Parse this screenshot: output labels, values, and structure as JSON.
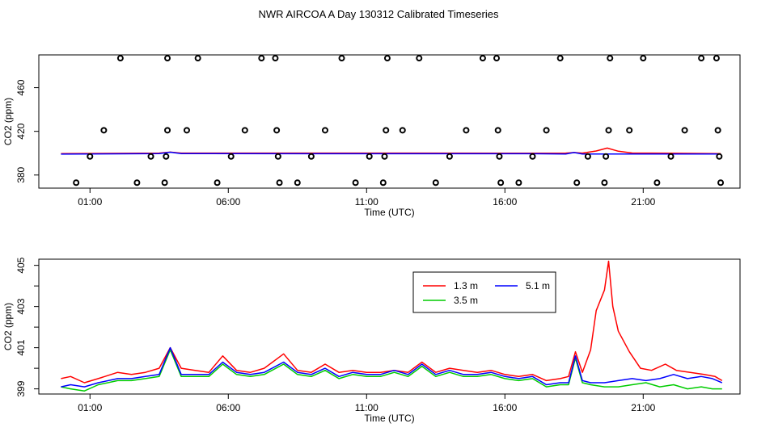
{
  "title": "NWR AIRCOA A  Day 130312  Calibrated Timeseries",
  "chart_data": [
    {
      "type": "scatter",
      "ylabel": "CO2 (ppm)",
      "xlabel": "Time (UTC)",
      "xlim": [
        -0.85,
        24.5
      ],
      "ylim": [
        368,
        490
      ],
      "x_tick_values": [
        1,
        6,
        11,
        16,
        21
      ],
      "x_tick_labels": [
        "01:00",
        "06:00",
        "11:00",
        "16:00",
        "21:00"
      ],
      "y_tick_values": [
        380,
        420,
        460
      ],
      "y_tick_labels": [
        "380",
        "420",
        "460"
      ],
      "points": [
        [
          0.5,
          373
        ],
        [
          1.0,
          397
        ],
        [
          1.5,
          421
        ],
        [
          2.1,
          487
        ],
        [
          2.7,
          373
        ],
        [
          3.2,
          397
        ],
        [
          3.7,
          373
        ],
        [
          3.75,
          397
        ],
        [
          3.8,
          421
        ],
        [
          3.8,
          487
        ],
        [
          4.5,
          421
        ],
        [
          4.9,
          487
        ],
        [
          5.6,
          373
        ],
        [
          6.1,
          397
        ],
        [
          6.6,
          421
        ],
        [
          7.2,
          487
        ],
        [
          7.7,
          487
        ],
        [
          7.75,
          421
        ],
        [
          7.8,
          397
        ],
        [
          7.85,
          373
        ],
        [
          8.5,
          373
        ],
        [
          9.0,
          397
        ],
        [
          9.5,
          421
        ],
        [
          10.1,
          487
        ],
        [
          10.6,
          373
        ],
        [
          11.1,
          397
        ],
        [
          11.6,
          373
        ],
        [
          11.65,
          397
        ],
        [
          11.7,
          421
        ],
        [
          11.75,
          487
        ],
        [
          12.3,
          421
        ],
        [
          12.9,
          487
        ],
        [
          13.5,
          373
        ],
        [
          14.0,
          397
        ],
        [
          14.6,
          421
        ],
        [
          15.2,
          487
        ],
        [
          15.7,
          487
        ],
        [
          15.75,
          421
        ],
        [
          15.8,
          397
        ],
        [
          15.85,
          373
        ],
        [
          16.5,
          373
        ],
        [
          17.0,
          397
        ],
        [
          17.5,
          421
        ],
        [
          18.0,
          487
        ],
        [
          18.6,
          373
        ],
        [
          19.0,
          397
        ],
        [
          19.6,
          373
        ],
        [
          19.65,
          397
        ],
        [
          19.75,
          421
        ],
        [
          19.8,
          487
        ],
        [
          20.5,
          421
        ],
        [
          21.0,
          487
        ],
        [
          21.5,
          373
        ],
        [
          22.0,
          397
        ],
        [
          22.5,
          421
        ],
        [
          23.1,
          487
        ],
        [
          23.65,
          487
        ],
        [
          23.7,
          421
        ],
        [
          23.75,
          397
        ],
        [
          23.8,
          373
        ]
      ],
      "lines": [
        {
          "name": "1.3 m",
          "color": "#ff0000",
          "x": [
            -0.05,
            3.5,
            3.9,
            4.3,
            17.0,
            18.2,
            18.5,
            18.8,
            19.3,
            19.7,
            20.1,
            20.6,
            22.0,
            23.8
          ],
          "y": [
            399.6,
            400.1,
            401.0,
            400.1,
            400.0,
            400.1,
            400.6,
            400.1,
            402.0,
            404.7,
            401.8,
            400.2,
            400.0,
            399.6
          ]
        },
        {
          "name": "5.1 m",
          "color": "#0000ff",
          "x": [
            -0.05,
            3.5,
            3.9,
            4.3,
            17.0,
            18.2,
            18.5,
            18.8,
            23.8
          ],
          "y": [
            399.1,
            399.6,
            400.9,
            399.6,
            399.5,
            399.3,
            400.6,
            399.3,
            399.3
          ]
        }
      ]
    },
    {
      "type": "line",
      "ylabel": "CO2 (ppm)",
      "xlabel": "Time (UTC)",
      "xlim": [
        -0.85,
        24.5
      ],
      "ylim": [
        398.75,
        405.3
      ],
      "x_tick_values": [
        1,
        6,
        11,
        16,
        21
      ],
      "x_tick_labels": [
        "01:00",
        "06:00",
        "11:00",
        "16:00",
        "21:00"
      ],
      "y_tick_values": [
        399,
        401,
        403,
        405
      ],
      "y_tick_labels": [
        "399",
        "401",
        "403",
        "405"
      ],
      "legend": {
        "position": "top-right",
        "entries": [
          "1.3 m",
          "3.5 m",
          "5.1 m"
        ]
      },
      "series": [
        {
          "name": "1.3 m",
          "color": "#ff0000",
          "x": [
            -0.05,
            0.3,
            0.8,
            1.3,
            2.0,
            2.5,
            3.0,
            3.5,
            3.9,
            4.3,
            4.8,
            5.3,
            5.8,
            6.3,
            6.8,
            7.3,
            8.0,
            8.5,
            9.0,
            9.5,
            10.0,
            10.5,
            11.0,
            11.5,
            12.0,
            12.5,
            13.0,
            13.5,
            14.0,
            14.5,
            15.0,
            15.5,
            16.0,
            16.5,
            17.0,
            17.5,
            18.0,
            18.3,
            18.55,
            18.8,
            19.1,
            19.3,
            19.6,
            19.75,
            19.9,
            20.1,
            20.5,
            20.9,
            21.3,
            21.8,
            22.2,
            22.7,
            23.2,
            23.6,
            23.85
          ],
          "y": [
            399.5,
            399.6,
            399.3,
            399.5,
            399.8,
            399.7,
            399.8,
            400.0,
            401.0,
            400.0,
            399.9,
            399.8,
            400.6,
            399.9,
            399.8,
            400.0,
            400.7,
            399.9,
            399.8,
            400.2,
            399.8,
            399.9,
            399.8,
            399.8,
            399.9,
            399.8,
            400.3,
            399.8,
            400.0,
            399.9,
            399.8,
            399.9,
            399.7,
            399.6,
            399.7,
            399.4,
            399.5,
            399.6,
            400.8,
            399.8,
            400.9,
            402.8,
            403.8,
            405.2,
            403.0,
            401.8,
            400.8,
            400.0,
            399.9,
            400.2,
            399.9,
            399.8,
            399.7,
            399.6,
            399.4
          ]
        },
        {
          "name": "3.5 m",
          "color": "#00cc00",
          "x": [
            -0.05,
            0.3,
            0.8,
            1.3,
            2.0,
            2.5,
            3.0,
            3.5,
            3.9,
            4.3,
            4.8,
            5.3,
            5.8,
            6.3,
            6.8,
            7.3,
            8.0,
            8.5,
            9.0,
            9.5,
            10.0,
            10.5,
            11.0,
            11.5,
            12.0,
            12.5,
            13.0,
            13.5,
            14.0,
            14.5,
            15.0,
            15.5,
            16.0,
            16.5,
            17.0,
            17.5,
            18.0,
            18.3,
            18.55,
            18.8,
            19.1,
            19.6,
            20.1,
            20.6,
            21.1,
            21.6,
            22.1,
            22.6,
            23.1,
            23.5,
            23.85
          ],
          "y": [
            399.1,
            399.0,
            398.9,
            399.2,
            399.4,
            399.4,
            399.5,
            399.6,
            400.9,
            399.6,
            399.6,
            399.6,
            400.2,
            399.7,
            399.6,
            399.7,
            400.2,
            399.7,
            399.6,
            399.9,
            399.5,
            399.7,
            399.6,
            399.6,
            399.8,
            399.6,
            400.1,
            399.6,
            399.8,
            399.6,
            399.6,
            399.7,
            399.5,
            399.4,
            399.5,
            399.1,
            399.2,
            399.2,
            400.5,
            399.3,
            399.2,
            399.1,
            399.1,
            399.2,
            399.3,
            399.1,
            399.2,
            399.0,
            399.1,
            399.0,
            399.0
          ]
        },
        {
          "name": "5.1 m",
          "color": "#0000ff",
          "x": [
            -0.05,
            0.3,
            0.8,
            1.3,
            2.0,
            2.5,
            3.0,
            3.5,
            3.9,
            4.3,
            4.8,
            5.3,
            5.8,
            6.3,
            6.8,
            7.3,
            8.0,
            8.5,
            9.0,
            9.5,
            10.0,
            10.5,
            11.0,
            11.5,
            12.0,
            12.5,
            13.0,
            13.5,
            14.0,
            14.5,
            15.0,
            15.5,
            16.0,
            16.5,
            17.0,
            17.5,
            18.0,
            18.3,
            18.55,
            18.8,
            19.1,
            19.6,
            20.1,
            20.6,
            21.1,
            21.6,
            22.1,
            22.6,
            23.1,
            23.5,
            23.85
          ],
          "y": [
            399.1,
            399.2,
            399.1,
            399.3,
            399.5,
            399.5,
            399.6,
            399.7,
            401.0,
            399.7,
            399.7,
            399.7,
            400.3,
            399.8,
            399.7,
            399.8,
            400.3,
            399.8,
            399.7,
            400.0,
            399.6,
            399.8,
            399.7,
            399.7,
            399.9,
            399.7,
            400.2,
            399.7,
            399.9,
            399.7,
            399.7,
            399.8,
            399.6,
            399.5,
            399.6,
            399.2,
            399.3,
            399.3,
            400.6,
            399.4,
            399.3,
            399.3,
            399.4,
            399.5,
            399.4,
            399.5,
            399.7,
            399.5,
            399.6,
            399.5,
            399.3
          ]
        }
      ]
    }
  ]
}
